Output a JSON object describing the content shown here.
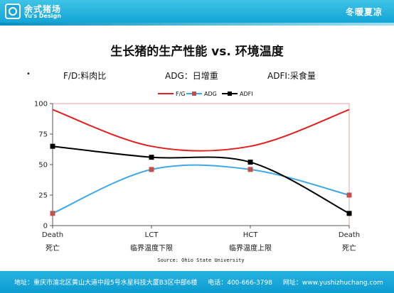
{
  "header": {
    "logo_cn": "余式猪场",
    "logo_en": "Yu's Design",
    "slogan": "冬暖夏凉"
  },
  "slide": {
    "title": "生长猪的生产性能 vs. 环境温度",
    "bullet": "•",
    "abbreviations": [
      "F/D:料肉比",
      "ADG：日增重",
      "ADFI:采食量"
    ]
  },
  "chart_data": {
    "type": "line",
    "categories": [
      "Death",
      "LCT",
      "HCT",
      "Death"
    ],
    "categories_cn": [
      "死亡",
      "临界温度下限",
      "临界温度上限",
      "死亡"
    ],
    "ylim": [
      0,
      100
    ],
    "yticks": [
      0,
      25,
      50,
      75,
      100
    ],
    "legend_position": "top",
    "grid": false,
    "source": "Source: Ohio State University",
    "series": [
      {
        "name": "F/G",
        "color": "#e21f1f",
        "marker": "none",
        "values": [
          95,
          65,
          65,
          95
        ]
      },
      {
        "name": "ADG",
        "color": "#3fa9e8",
        "marker": "square",
        "marker_color": "#c0504d",
        "values": [
          10,
          46,
          46,
          25
        ]
      },
      {
        "name": "ADFI",
        "color": "#000000",
        "marker": "square",
        "marker_color": "#000000",
        "values": [
          65,
          56,
          52,
          10
        ]
      }
    ]
  },
  "footer": {
    "address": "地址：重庆市渝北区黄山大道中段5号水星科技大厦B3区中部6楼",
    "phone": "电话：400-666-3798",
    "website": "网址：www.yushizhuchang.com"
  }
}
